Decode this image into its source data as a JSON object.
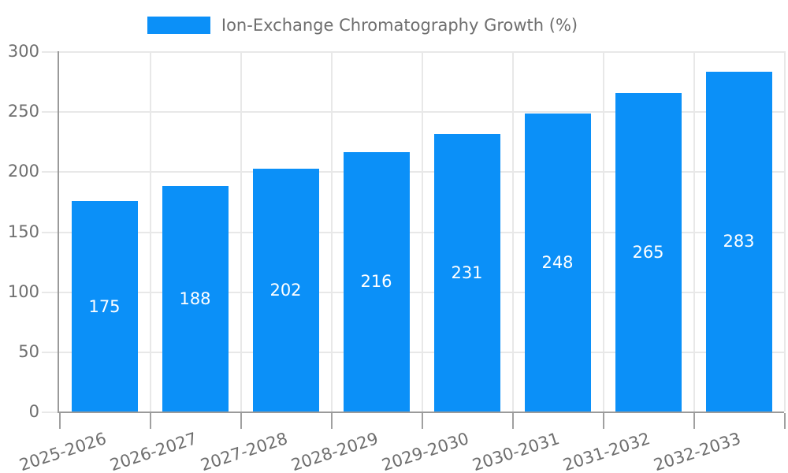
{
  "chart_data": {
    "type": "bar",
    "title": "Ion-Exchange Chromatography Growth (%)",
    "categories": [
      "2025-2026",
      "2026-2027",
      "2027-2028",
      "2028-2029",
      "2029-2030",
      "2030-2031",
      "2031-2032",
      "2032-2033"
    ],
    "values": [
      175,
      188,
      202,
      216,
      231,
      248,
      265,
      283
    ],
    "xlabel": "",
    "ylabel": "",
    "ylim": [
      0,
      300
    ],
    "yticks": [
      0,
      50,
      100,
      150,
      200,
      250,
      300
    ],
    "legend_position": "top-center",
    "grid": true,
    "x_label_rotation_deg": -18,
    "value_labels_position": "center-of-bar",
    "colors": {
      "bar": "#0b90f8",
      "value_label": "#ffffff",
      "axis_text": "#6e6e6e",
      "grid_line": "#e8e8e8",
      "axis_line": "#9a9a9a",
      "x_tick": "#a0a0a0",
      "background": "#ffffff"
    }
  }
}
